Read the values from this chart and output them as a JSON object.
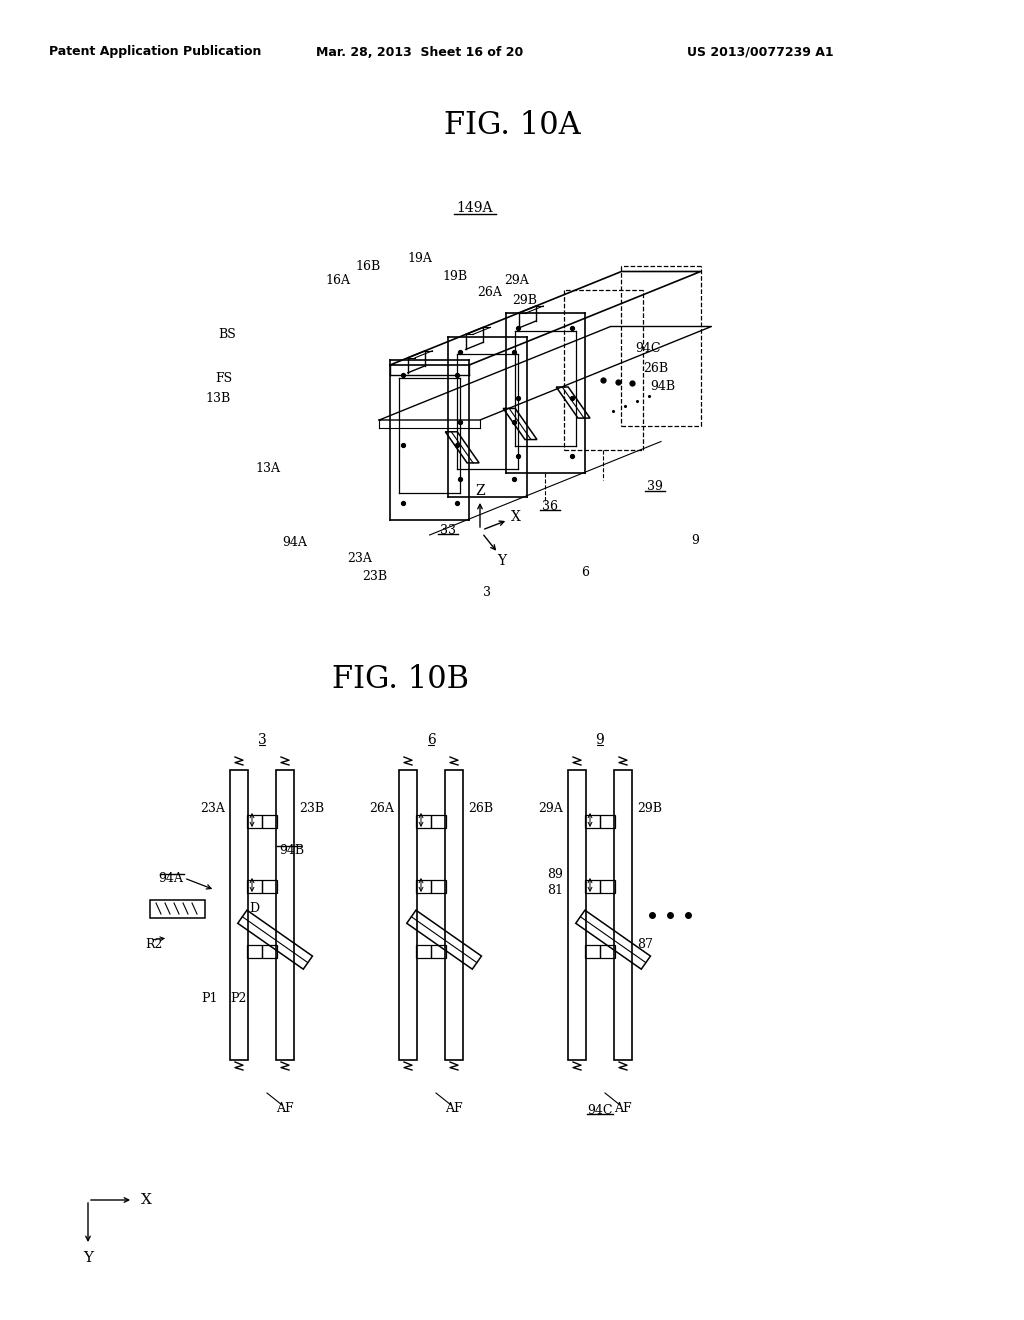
{
  "bg_color": "#ffffff",
  "header_left": "Patent Application Publication",
  "header_mid": "Mar. 28, 2013  Sheet 16 of 20",
  "header_right": "US 2013/0077239 A1",
  "fig_title_a": "FIG. 10A",
  "fig_title_b": "FIG. 10B",
  "label_149A": "149A"
}
